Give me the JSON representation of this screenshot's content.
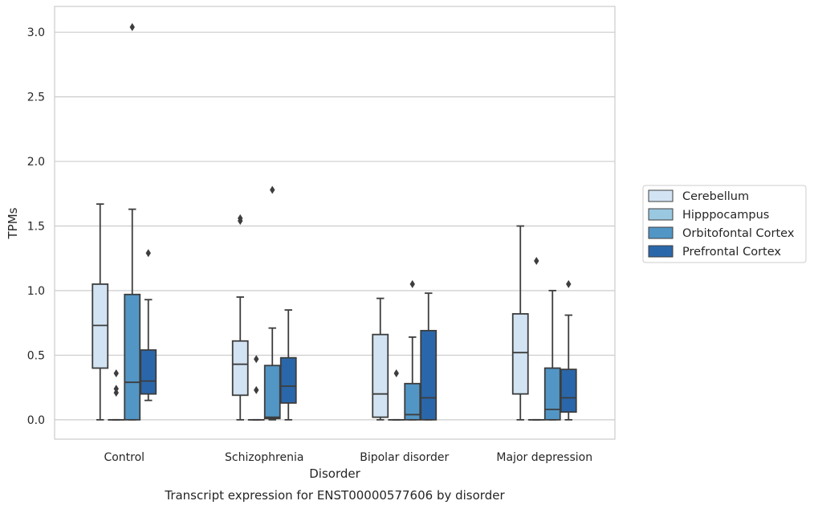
{
  "chart_data": {
    "type": "box",
    "title": "",
    "caption": "Transcript expression for ENST00000577606 by disorder",
    "xlabel": "Disorder",
    "ylabel": "TPMs",
    "ylim": [
      -0.15,
      3.2
    ],
    "yticks": [
      "0.0",
      "0.5",
      "1.0",
      "1.5",
      "2.0",
      "2.5",
      "3.0"
    ],
    "grid": "horizontal",
    "legend_placement": "right, outside plot",
    "categories": [
      "Control",
      "Schizophrenia",
      "Bipolar disorder",
      "Major depression"
    ],
    "series": [
      {
        "name": "Cerebellum",
        "color": "#d2e3f3",
        "boxes": [
          {
            "whislo": 0.0,
            "q1": 0.4,
            "med": 0.73,
            "q3": 1.05,
            "whishi": 1.67,
            "fliers": []
          },
          {
            "whislo": 0.0,
            "q1": 0.19,
            "med": 0.43,
            "q3": 0.61,
            "whishi": 0.95,
            "fliers": [
              1.54,
              1.56
            ]
          },
          {
            "whislo": 0.0,
            "q1": 0.02,
            "med": 0.2,
            "q3": 0.66,
            "whishi": 0.94,
            "fliers": []
          },
          {
            "whislo": 0.0,
            "q1": 0.2,
            "med": 0.52,
            "q3": 0.82,
            "whishi": 1.5,
            "fliers": []
          }
        ]
      },
      {
        "name": "Hipppocampus",
        "color": "#9ac8e0",
        "boxes": [
          {
            "whislo": 0.0,
            "q1": 0.0,
            "med": 0.0,
            "q3": 0.0,
            "whishi": 0.0,
            "fliers": [
              0.21,
              0.24,
              0.36
            ]
          },
          {
            "whislo": 0.0,
            "q1": 0.0,
            "med": 0.0,
            "q3": 0.0,
            "whishi": 0.0,
            "fliers": [
              0.23,
              0.47
            ]
          },
          {
            "whislo": 0.0,
            "q1": 0.0,
            "med": 0.0,
            "q3": 0.0,
            "whishi": 0.0,
            "fliers": [
              0.36
            ]
          },
          {
            "whislo": 0.0,
            "q1": 0.0,
            "med": 0.0,
            "q3": 0.0,
            "whishi": 0.0,
            "fliers": [
              1.23
            ]
          }
        ]
      },
      {
        "name": "Orbitofontal Cortex",
        "color": "#5296c6",
        "boxes": [
          {
            "whislo": 0.0,
            "q1": 0.0,
            "med": 0.29,
            "q3": 0.97,
            "whishi": 1.63,
            "fliers": [
              3.04
            ]
          },
          {
            "whislo": 0.0,
            "q1": 0.01,
            "med": 0.02,
            "q3": 0.42,
            "whishi": 0.71,
            "fliers": [
              1.78
            ]
          },
          {
            "whislo": 0.0,
            "q1": 0.0,
            "med": 0.04,
            "q3": 0.28,
            "whishi": 0.64,
            "fliers": [
              1.05
            ]
          },
          {
            "whislo": 0.0,
            "q1": 0.0,
            "med": 0.08,
            "q3": 0.4,
            "whishi": 1.0,
            "fliers": []
          }
        ]
      },
      {
        "name": "Prefrontal Cortex",
        "color": "#2a67aa",
        "boxes": [
          {
            "whislo": 0.15,
            "q1": 0.2,
            "med": 0.3,
            "q3": 0.54,
            "whishi": 0.93,
            "fliers": [
              1.29
            ]
          },
          {
            "whislo": 0.0,
            "q1": 0.13,
            "med": 0.26,
            "q3": 0.48,
            "whishi": 0.85,
            "fliers": []
          },
          {
            "whislo": 0.0,
            "q1": 0.0,
            "med": 0.17,
            "q3": 0.69,
            "whishi": 0.98,
            "fliers": []
          },
          {
            "whislo": 0.0,
            "q1": 0.06,
            "med": 0.17,
            "q3": 0.39,
            "whishi": 0.81,
            "fliers": [
              1.05
            ]
          }
        ]
      }
    ]
  }
}
